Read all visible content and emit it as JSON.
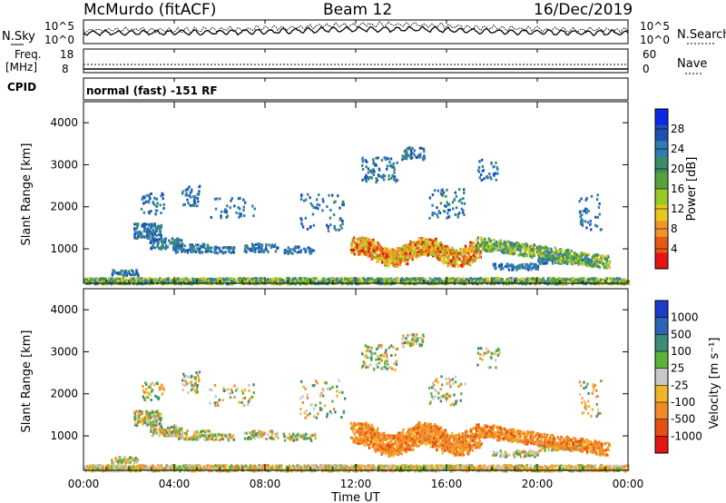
{
  "header": {
    "station": "McMurdo (fitACF)",
    "beam": "Beam 12",
    "date": "16/Dec/2019"
  },
  "noise_panel": {
    "left_label": "N.Sky",
    "right_label": "N.Search",
    "left_ticks": [
      "10^5",
      "10^0"
    ],
    "right_ticks": [
      "10^5",
      "10^0"
    ]
  },
  "freq_panel": {
    "left_label_line1": "Freq.",
    "left_label_line2": "[MHz]",
    "right_label": "Nave",
    "left_ticks": [
      "18",
      "8"
    ],
    "right_ticks": [
      "60",
      "0"
    ]
  },
  "cpid": {
    "label": "CPID",
    "value": "normal (fast) -151 RF"
  },
  "chart_data": [
    {
      "type": "heatmap",
      "name": "power",
      "ylabel": "Slant Range [km]",
      "ylim": [
        180,
        4500
      ],
      "y_ticks": [
        "1000",
        "2000",
        "3000",
        "4000"
      ],
      "colorbar": {
        "label": "Power [dB]",
        "ticks": [
          "4",
          "8",
          "12",
          "16",
          "20",
          "24",
          "28"
        ],
        "colors": [
          "#0a28e6",
          "#1e50b4",
          "#2e7cb4",
          "#3c8c64",
          "#5aa03c",
          "#96c828",
          "#e6c81e",
          "#f09628",
          "#e65a14",
          "#e61414"
        ]
      }
    },
    {
      "type": "heatmap",
      "name": "velocity",
      "ylabel": "Slant Range [km]",
      "ylim": [
        180,
        4500
      ],
      "y_ticks": [
        "1000",
        "2000",
        "3000",
        "4000"
      ],
      "colorbar": {
        "label": "Velocity [m s⁻¹]",
        "ticks": [
          "1000",
          "500",
          "100",
          "25",
          "-25",
          "-100",
          "-500",
          "-1000"
        ],
        "colors": [
          "#1e3cc8",
          "#2e64b4",
          "#3c8c78",
          "#5ab43c",
          "#c8c8c8",
          "#f0b428",
          "#f08c28",
          "#e65014",
          "#e61414"
        ]
      }
    }
  ],
  "x_axis": {
    "label": "Time UT",
    "ticks": [
      "00:00",
      "04:00",
      "08:00",
      "12:00",
      "16:00",
      "20:00",
      "00:00"
    ]
  }
}
